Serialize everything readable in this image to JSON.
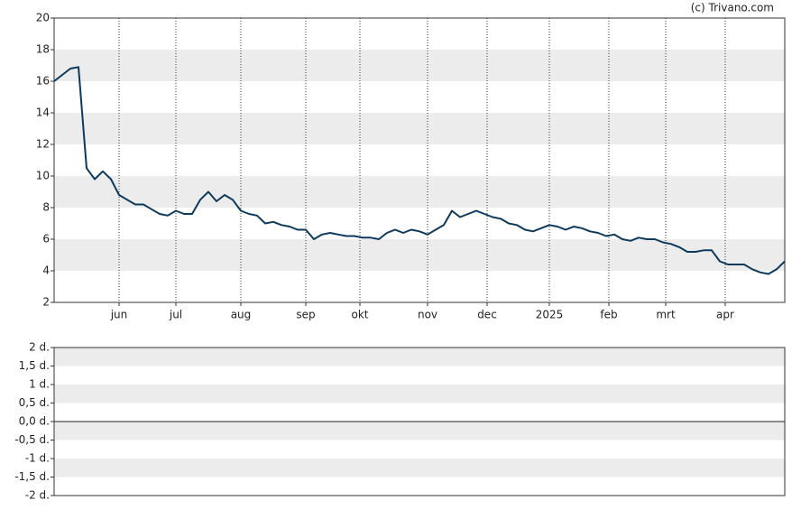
{
  "chart_data": [
    {
      "type": "line",
      "credit": "(c) Trivano.com",
      "xlim": [
        0,
        270
      ],
      "xticks": [
        {
          "value": 24,
          "label": "jun"
        },
        {
          "value": 45,
          "label": "jul"
        },
        {
          "value": 69,
          "label": "aug"
        },
        {
          "value": 93,
          "label": "sep"
        },
        {
          "value": 113,
          "label": "okt"
        },
        {
          "value": 138,
          "label": "nov"
        },
        {
          "value": 160,
          "label": "dec"
        },
        {
          "value": 183,
          "label": "2025"
        },
        {
          "value": 205,
          "label": "feb"
        },
        {
          "value": 226,
          "label": "mrt"
        },
        {
          "value": 248,
          "label": "apr"
        }
      ],
      "ylim": [
        2,
        20
      ],
      "yticks": [
        2,
        4,
        6,
        8,
        10,
        12,
        14,
        16,
        18,
        20
      ],
      "bands": true,
      "xgrid": true,
      "series": [
        {
          "color": "#0d3a5c",
          "x": [
            0,
            3,
            6,
            9,
            12,
            15,
            18,
            21,
            24,
            27,
            30,
            33,
            36,
            39,
            42,
            45,
            48,
            51,
            54,
            57,
            60,
            63,
            66,
            69,
            72,
            75,
            78,
            81,
            84,
            87,
            90,
            93,
            96,
            99,
            102,
            105,
            108,
            111,
            114,
            117,
            120,
            123,
            126,
            129,
            132,
            135,
            138,
            141,
            144,
            147,
            150,
            153,
            156,
            159,
            162,
            165,
            168,
            171,
            174,
            177,
            180,
            183,
            186,
            189,
            192,
            195,
            198,
            201,
            204,
            207,
            210,
            213,
            216,
            219,
            222,
            225,
            228,
            231,
            234,
            237,
            240,
            243,
            246,
            249,
            252,
            255,
            258,
            261,
            264,
            267,
            270
          ],
          "values": [
            16.0,
            16.4,
            16.8,
            16.9,
            10.5,
            9.8,
            10.3,
            9.8,
            8.8,
            8.5,
            8.2,
            8.2,
            7.9,
            7.6,
            7.5,
            7.8,
            7.6,
            7.6,
            8.5,
            9.0,
            8.4,
            8.8,
            8.5,
            7.8,
            7.6,
            7.5,
            7.0,
            7.1,
            6.9,
            6.8,
            6.6,
            6.6,
            6.0,
            6.3,
            6.4,
            6.3,
            6.2,
            6.2,
            6.1,
            6.1,
            6.0,
            6.4,
            6.6,
            6.4,
            6.6,
            6.5,
            6.3,
            6.6,
            6.9,
            7.8,
            7.4,
            7.6,
            7.8,
            7.6,
            7.4,
            7.3,
            7.0,
            6.9,
            6.6,
            6.5,
            6.7,
            6.9,
            6.8,
            6.6,
            6.8,
            6.7,
            6.5,
            6.4,
            6.2,
            6.3,
            6.0,
            5.9,
            6.1,
            6.0,
            6.0,
            5.8,
            5.7,
            5.5,
            5.2,
            5.2,
            5.3,
            5.3,
            4.6,
            4.4,
            4.4,
            4.4,
            4.1,
            3.9,
            3.8,
            4.1,
            4.6
          ]
        }
      ]
    },
    {
      "type": "line",
      "xlim": [
        0,
        270
      ],
      "ylim": [
        -2,
        2
      ],
      "yticks": [
        {
          "value": -2,
          "label": "-2 d."
        },
        {
          "value": -1.5,
          "label": "-1,5 d."
        },
        {
          "value": -1,
          "label": "-1 d."
        },
        {
          "value": -0.5,
          "label": "-0,5 d."
        },
        {
          "value": 0,
          "label": "0,0 d."
        },
        {
          "value": 0.5,
          "label": "0,5 d."
        },
        {
          "value": 1,
          "label": "1 d."
        },
        {
          "value": 1.5,
          "label": "1,5 d."
        },
        {
          "value": 2,
          "label": "2 d."
        }
      ],
      "bands": true,
      "xgrid": false
    }
  ]
}
